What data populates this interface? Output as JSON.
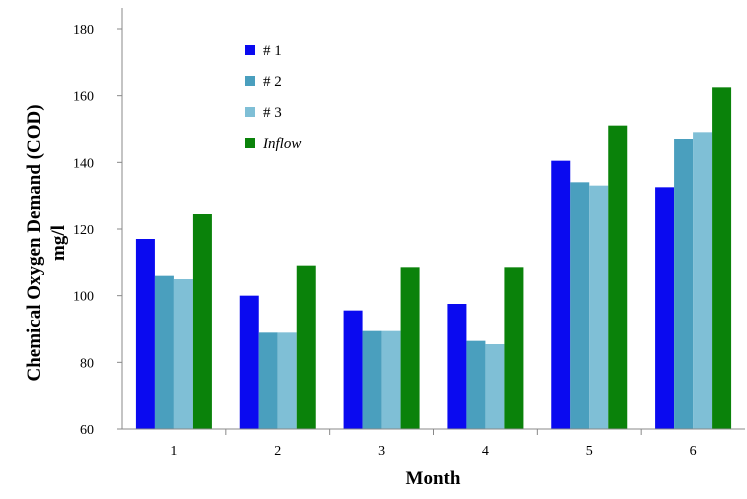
{
  "chart_data": {
    "type": "bar",
    "title": "",
    "xlabel": "Month",
    "ylabel_line1": "Chemical Oxygen Demand  (COD)",
    "ylabel_line2": "mg/l",
    "categories": [
      "1",
      "2",
      "3",
      "4",
      "5",
      "6"
    ],
    "ylim": [
      60,
      180
    ],
    "yticks": [
      60,
      80,
      100,
      120,
      140,
      160,
      180
    ],
    "grid": false,
    "legend_position": "top-left inside plot",
    "series": [
      {
        "name": "# 1",
        "color": "#0A0AF0",
        "italic": false,
        "values": [
          117,
          100,
          95.5,
          97.5,
          140.5,
          132.5
        ]
      },
      {
        "name": "# 2",
        "color": "#4A9FBE",
        "italic": false,
        "values": [
          106,
          89,
          89.5,
          86.5,
          134,
          147
        ]
      },
      {
        "name": "# 3",
        "color": "#7FBFD6",
        "italic": false,
        "values": [
          105,
          89,
          89.5,
          85.5,
          133,
          149
        ]
      },
      {
        "name": "Inflow",
        "color": "#0A820A",
        "italic": true,
        "values": [
          124.5,
          109,
          108.5,
          108.5,
          151,
          162.5
        ]
      }
    ]
  }
}
